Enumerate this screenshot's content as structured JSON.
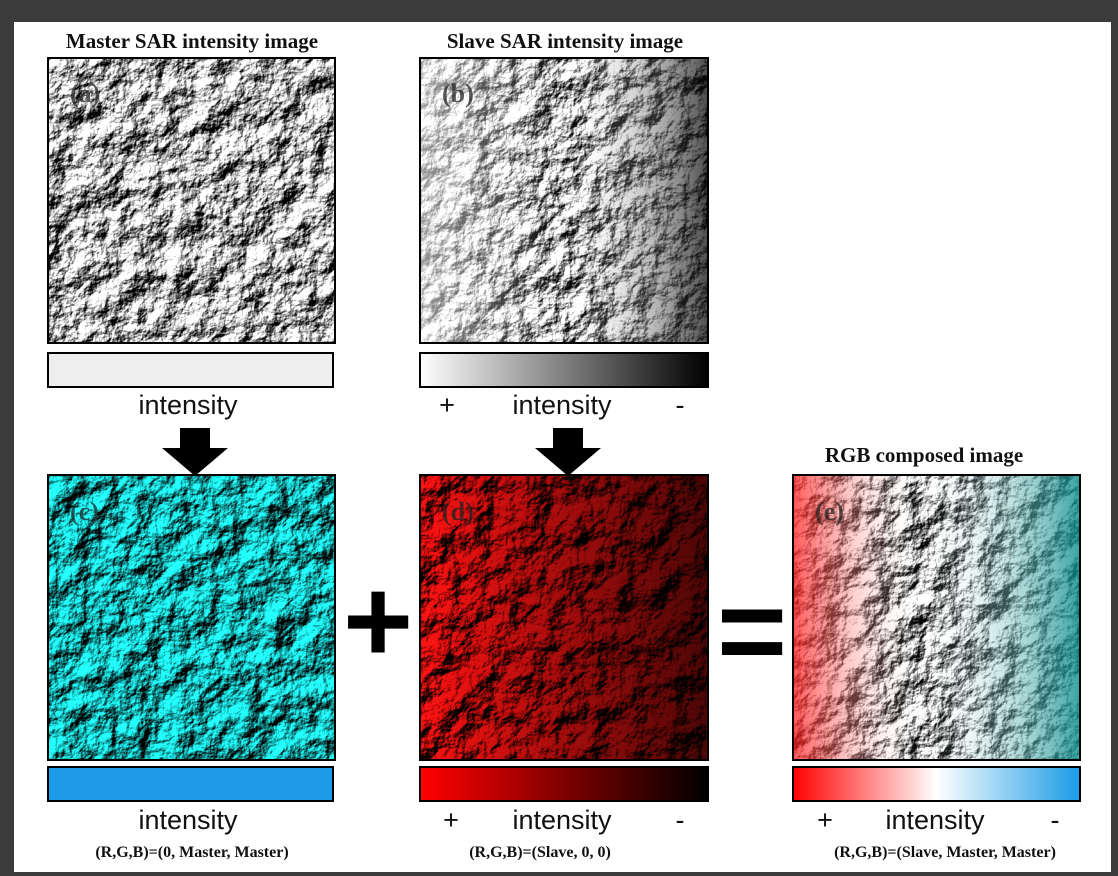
{
  "panels": [
    {
      "title": "Master SAR intensity image",
      "label": "(a)",
      "scale": "intensity"
    },
    {
      "title": "Slave SAR intensity image",
      "label": "(b)",
      "scale_high": "+",
      "scale": "intensity",
      "scale_low": "-"
    },
    {
      "label": "(c)",
      "scale": "intensity",
      "formula": "(R,G,B)=(0, Master, Master)"
    },
    {
      "label": "(d)",
      "scale_high": "+",
      "scale": "intensity",
      "scale_low": "-",
      "formula": "(R,G,B)=(Slave, 0, 0)"
    },
    {
      "title": "RGB composed image",
      "label": "(e)",
      "scale_high": "+",
      "scale": "intensity",
      "scale_low": "-",
      "formula": "(R,G,B)=(Slave, Master, Master)"
    }
  ],
  "operators": [
    "+",
    "="
  ]
}
